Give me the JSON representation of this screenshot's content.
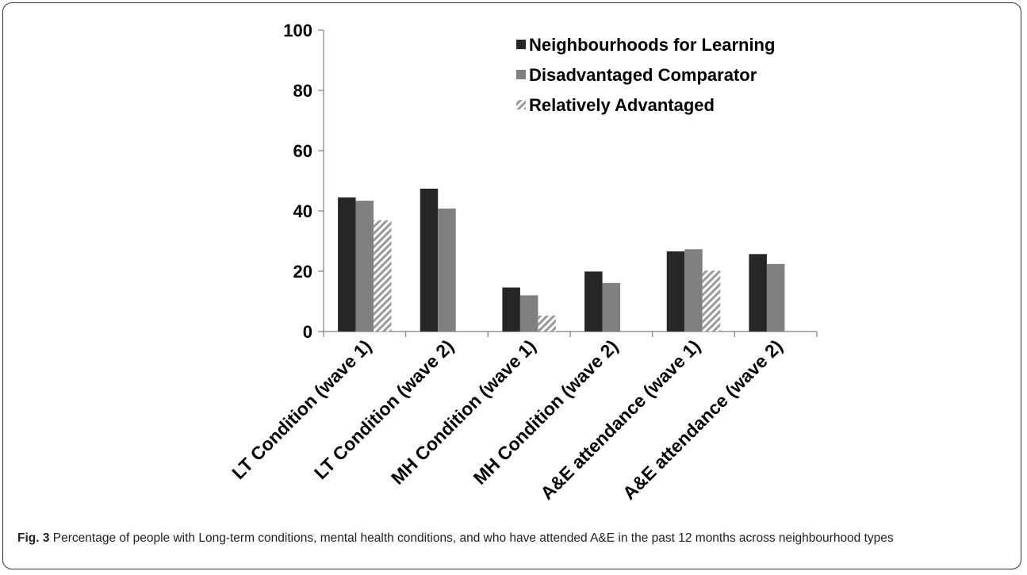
{
  "caption": {
    "label": "Fig. 3",
    "text": "Percentage of people with Long-term conditions, mental health conditions, and who have attended A&E in the past 12 months across neighbourhood types"
  },
  "chart_data": {
    "type": "bar",
    "title": "",
    "xlabel": "",
    "ylabel": "",
    "ylim": [
      0,
      100
    ],
    "yticks": [
      0,
      20,
      40,
      60,
      80,
      100
    ],
    "grid": false,
    "legend_position": "top-right",
    "categories": [
      "LT Condition (wave 1)",
      "LT Condition (wave 2)",
      "MH Condition (wave 1)",
      "MH Condition (wave 2)",
      "A&E attendance (wave 1)",
      "A&E attendance (wave 2)"
    ],
    "series": [
      {
        "name": "Neighbourhoods for Learning",
        "color": "#262626",
        "pattern": "solid",
        "values": [
          44.5,
          47.4,
          14.6,
          19.9,
          26.6,
          25.7
        ]
      },
      {
        "name": "Disadvantaged Comparator",
        "color": "#808080",
        "pattern": "solid",
        "values": [
          43.4,
          40.8,
          12.0,
          16.1,
          27.3,
          22.4
        ]
      },
      {
        "name": "Relatively Advantaged",
        "color": "#a6a6a6",
        "pattern": "hatch",
        "values": [
          36.9,
          null,
          5.3,
          null,
          20.2,
          null
        ]
      }
    ]
  }
}
